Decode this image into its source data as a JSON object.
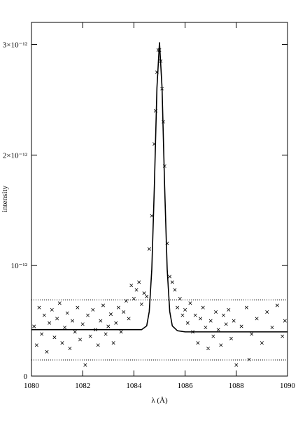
{
  "chart_data": {
    "type": "scatter",
    "xlabel": "λ (Å)",
    "ylabel": "intensity",
    "xlim": [
      1080,
      1090
    ],
    "xticks": [
      1080,
      1082,
      1084,
      1086,
      1088,
      1090
    ],
    "ylim": [
      0,
      3.2e-12
    ],
    "yticks": [
      0,
      {
        "value": 1e-12,
        "label": "10⁻¹²"
      },
      {
        "value": 2e-12,
        "label": "2×10⁻¹²"
      },
      {
        "value": 3e-12,
        "label": "3×10⁻¹²"
      }
    ],
    "color": "#000000",
    "points": {
      "x": [
        1080.1,
        1080.2,
        1080.3,
        1080.4,
        1080.5,
        1080.6,
        1080.7,
        1080.8,
        1080.9,
        1081.0,
        1081.1,
        1081.2,
        1081.3,
        1081.4,
        1081.5,
        1081.6,
        1081.7,
        1081.8,
        1081.9,
        1082.0,
        1082.1,
        1082.2,
        1082.3,
        1082.4,
        1082.5,
        1082.6,
        1082.7,
        1082.8,
        1082.9,
        1083.0,
        1083.1,
        1083.2,
        1083.3,
        1083.4,
        1083.5,
        1083.6,
        1083.7,
        1083.8,
        1083.9,
        1084.0,
        1084.1,
        1084.2,
        1084.3,
        1084.4,
        1084.5,
        1084.6,
        1084.7,
        1084.8,
        1084.85,
        1084.9,
        1084.95,
        1085.0,
        1085.05,
        1085.1,
        1085.15,
        1085.2,
        1085.3,
        1085.4,
        1085.5,
        1085.6,
        1085.7,
        1085.8,
        1085.9,
        1086.0,
        1086.1,
        1086.2,
        1086.3,
        1086.4,
        1086.5,
        1086.6,
        1086.7,
        1086.8,
        1086.9,
        1087.0,
        1087.1,
        1087.2,
        1087.3,
        1087.4,
        1087.5,
        1087.6,
        1087.7,
        1087.8,
        1087.9,
        1088.0,
        1088.2,
        1088.4,
        1088.5,
        1088.6,
        1088.8,
        1089.0,
        1089.2,
        1089.4,
        1089.6,
        1089.8,
        1089.9
      ],
      "y": [
        4.5e-13,
        2.8e-13,
        6.2e-13,
        3.8e-13,
        5.5e-13,
        2.2e-13,
        4.8e-13,
        6e-13,
        3.5e-13,
        5.2e-13,
        6.6e-13,
        3e-13,
        4.4e-13,
        5.7e-13,
        2.5e-13,
        5e-13,
        4e-13,
        6.2e-13,
        3.3e-13,
        4.7e-13,
        1e-13,
        5.5e-13,
        3.6e-13,
        6e-13,
        4.2e-13,
        2.8e-13,
        5e-13,
        6.4e-13,
        3.8e-13,
        4.5e-13,
        5.6e-13,
        3e-13,
        4.8e-13,
        6.2e-13,
        4e-13,
        5.8e-13,
        6.8e-13,
        5.2e-13,
        8.2e-13,
        7e-13,
        7.8e-13,
        8.5e-13,
        6.5e-13,
        7.5e-13,
        7.2e-13,
        1.15e-12,
        1.45e-12,
        2.1e-12,
        2.4e-12,
        2.75e-12,
        2.95e-12,
        2.95e-12,
        2.85e-12,
        2.6e-12,
        2.3e-12,
        1.9e-12,
        1.2e-12,
        9e-13,
        8.5e-13,
        7.8e-13,
        6.2e-13,
        7e-13,
        5.5e-13,
        6e-13,
        4.8e-13,
        6.6e-13,
        4e-13,
        5.5e-13,
        3e-13,
        5.2e-13,
        6.2e-13,
        4.4e-13,
        2.5e-13,
        5e-13,
        3.6e-13,
        5.8e-13,
        4.2e-13,
        2.8e-13,
        5.5e-13,
        4.7e-13,
        6e-13,
        3.4e-13,
        5e-13,
        1e-13,
        4.5e-13,
        6.2e-13,
        1.5e-13,
        3.8e-13,
        5.2e-13,
        3e-13,
        5.8e-13,
        4.4e-13,
        6.4e-13,
        3.6e-13,
        5e-13
      ]
    },
    "fit": {
      "x": [
        1080,
        1084,
        1084.3,
        1084.5,
        1084.6,
        1084.7,
        1084.8,
        1084.9,
        1085,
        1085.1,
        1085.2,
        1085.3,
        1085.4,
        1085.5,
        1085.7,
        1086,
        1090
      ],
      "y": [
        4.2e-13,
        4.2e-13,
        4.2e-13,
        4.54e-13,
        5.84e-13,
        9.68e-13,
        1.72e-12,
        2.607e-12,
        3.02e-12,
        2.607e-12,
        1.72e-12,
        9.68e-13,
        5.84e-13,
        4.54e-13,
        4.1e-13,
        4e-13,
        4e-13
      ]
    },
    "reference_lines": [
      6.9e-13,
      1.46e-13
    ]
  }
}
